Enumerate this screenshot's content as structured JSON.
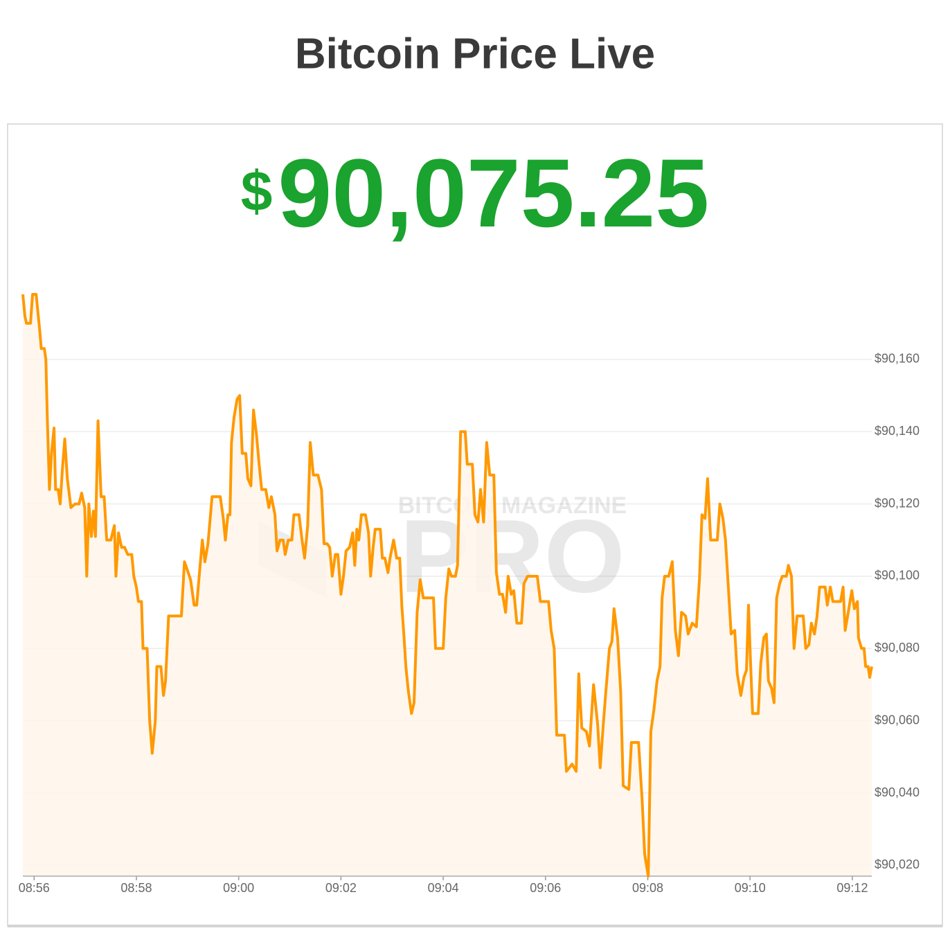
{
  "title": "Bitcoin Price Live",
  "price": {
    "currency": "$",
    "amount": "90,075.25"
  },
  "watermark": [
    "BITCOIN MAGAZINE",
    "PRO"
  ],
  "chart_data": {
    "type": "line",
    "xlim": [
      535.78,
      552.38
    ],
    "ylim": [
      90017,
      90178
    ],
    "xticks": [
      {
        "value": 536,
        "label": "08:56"
      },
      {
        "value": 538,
        "label": "08:58"
      },
      {
        "value": 540,
        "label": "09:00"
      },
      {
        "value": 542,
        "label": "09:02"
      },
      {
        "value": 544,
        "label": "09:04"
      },
      {
        "value": 546,
        "label": "09:06"
      },
      {
        "value": 548,
        "label": "09:08"
      },
      {
        "value": 550,
        "label": "09:10"
      },
      {
        "value": 552,
        "label": "09:12"
      }
    ],
    "yticks": [
      {
        "value": 90020,
        "label": "$90,020"
      },
      {
        "value": 90040,
        "label": "$90,040"
      },
      {
        "value": 90060,
        "label": "$90,060"
      },
      {
        "value": 90080,
        "label": "$90,080"
      },
      {
        "value": 90100,
        "label": "$90,100"
      },
      {
        "value": 90120,
        "label": "$90,120"
      },
      {
        "value": 90140,
        "label": "$90,140"
      },
      {
        "value": 90160,
        "label": "$90,160"
      }
    ],
    "grid": true,
    "area_color": "#fff6ea",
    "x": [
      535.78,
      535.82,
      535.85,
      535.93,
      535.97,
      536.04,
      536.11,
      536.14,
      536.2,
      536.23,
      536.26,
      536.3,
      536.34,
      536.39,
      536.42,
      536.47,
      536.51,
      536.55,
      536.6,
      536.65,
      536.72,
      536.8,
      536.88,
      536.93,
      536.99,
      537.03,
      537.07,
      537.12,
      537.16,
      537.2,
      537.25,
      537.31,
      537.37,
      537.42,
      537.5,
      537.57,
      537.6,
      537.65,
      537.71,
      537.77,
      537.83,
      537.91,
      537.95,
      538.0,
      538.04,
      538.1,
      538.13,
      538.21,
      538.26,
      538.31,
      538.37,
      538.4,
      538.48,
      538.53,
      538.57,
      538.63,
      538.88,
      538.94,
      538.99,
      539.06,
      539.13,
      539.18,
      539.24,
      539.29,
      539.34,
      539.4,
      539.48,
      539.64,
      539.7,
      539.74,
      539.79,
      539.83,
      539.86,
      539.91,
      539.97,
      540.02,
      540.07,
      540.14,
      540.18,
      540.24,
      540.29,
      540.35,
      540.4,
      540.45,
      540.53,
      540.59,
      540.64,
      540.71,
      540.75,
      540.81,
      540.87,
      540.91,
      540.97,
      541.04,
      541.08,
      541.18,
      541.24,
      541.29,
      541.35,
      541.4,
      541.46,
      541.55,
      541.62,
      541.67,
      541.73,
      541.78,
      541.83,
      541.89,
      541.94,
      542.0,
      542.05,
      542.1,
      542.17,
      542.23,
      542.27,
      542.31,
      542.35,
      542.4,
      542.48,
      542.54,
      542.58,
      542.63,
      542.67,
      542.77,
      542.81,
      542.86,
      542.92,
      542.96,
      543.03,
      543.09,
      543.15,
      543.19,
      543.23,
      543.27,
      543.32,
      543.38,
      543.43,
      543.49,
      543.55,
      543.61,
      543.81,
      543.85,
      544.0,
      544.05,
      544.11,
      544.16,
      544.24,
      544.28,
      544.34,
      544.43,
      544.47,
      544.57,
      544.62,
      544.68,
      544.73,
      544.79,
      544.85,
      544.91,
      544.99,
      545.04,
      545.1,
      545.16,
      545.22,
      545.27,
      545.33,
      545.38,
      545.44,
      545.53,
      545.58,
      545.65,
      545.84,
      545.9,
      546.06,
      546.11,
      546.17,
      546.22,
      546.37,
      546.41,
      546.52,
      546.6,
      546.65,
      546.71,
      546.8,
      546.86,
      546.94,
      547.02,
      547.07,
      547.13,
      547.18,
      547.25,
      547.3,
      547.34,
      547.41,
      547.47,
      547.52,
      547.63,
      547.68,
      547.82,
      547.89,
      547.94,
      548.01,
      548.06,
      548.12,
      548.18,
      548.24,
      548.28,
      548.33,
      548.41,
      548.48,
      548.54,
      548.6,
      548.66,
      548.74,
      548.79,
      548.87,
      548.95,
      549.01,
      549.06,
      549.12,
      549.17,
      549.23,
      549.36,
      549.41,
      549.47,
      549.52,
      549.58,
      549.63,
      549.7,
      549.75,
      549.82,
      549.88,
      549.93,
      549.97,
      550.01,
      550.05,
      550.16,
      550.21,
      550.27,
      550.32,
      550.36,
      550.42,
      550.47,
      550.52,
      550.58,
      550.63,
      550.71,
      550.75,
      550.81,
      550.86,
      550.92,
      551.04,
      551.09,
      551.15,
      551.2,
      551.26,
      551.31,
      551.36,
      551.47,
      551.51,
      551.57,
      551.62,
      551.77,
      551.82,
      551.86,
      551.92,
      551.99,
      552.04,
      552.1,
      552.12,
      552.18,
      552.23,
      552.26,
      552.31,
      552.34,
      552.38
    ],
    "series": [
      {
        "color": "#ff9900",
        "values": [
          90178,
          90172,
          90170,
          90170,
          90178,
          90178,
          90168,
          90163,
          90163,
          90160,
          90143,
          90124,
          90134,
          90141,
          90124,
          90124,
          90120,
          90129,
          90138,
          90127,
          90119,
          90120,
          90120,
          90123,
          90119,
          90100,
          90120,
          90111,
          90118,
          90111,
          90143,
          90122,
          90122,
          90110,
          90110,
          90114,
          90100,
          90112,
          90108,
          90108,
          90106,
          90106,
          90100,
          90097,
          90093,
          90093,
          90080,
          90080,
          90060,
          90051,
          90060,
          90075,
          90075,
          90067,
          90071,
          90089,
          90089,
          90104,
          90102,
          90099,
          90092,
          90092,
          90102,
          90110,
          90104,
          90109,
          90122,
          90122,
          90116,
          90110,
          90117,
          90117,
          90137,
          90144,
          90149,
          90150,
          90134,
          90134,
          90127,
          90125,
          90146,
          90139,
          90131,
          90124,
          90124,
          90119,
          90122,
          90117,
          90107,
          90110,
          90110,
          90106,
          90110,
          90110,
          90117,
          90117,
          90110,
          90105,
          90114,
          90137,
          90128,
          90128,
          90124,
          90109,
          90109,
          90108,
          90100,
          90106,
          90106,
          90095,
          90100,
          90107,
          90108,
          90112,
          90103,
          90113,
          90110,
          90117,
          90117,
          90112,
          90100,
          90108,
          90113,
          90113,
          90105,
          90105,
          90101,
          90105,
          90110,
          90105,
          90105,
          90092,
          90084,
          90075,
          90068,
          90062,
          90065,
          90090,
          90099,
          90094,
          90094,
          90080,
          90080,
          90094,
          90102,
          90100,
          90100,
          90103,
          90140,
          90140,
          90131,
          90131,
          90117,
          90115,
          90124,
          90115,
          90137,
          90128,
          90128,
          90101,
          90095,
          90095,
          90090,
          90100,
          90095,
          90096,
          90087,
          90087,
          90098,
          90100,
          90100,
          90093,
          90093,
          90085,
          90080,
          90056,
          90056,
          90046,
          90048,
          90046,
          90073,
          90058,
          90057,
          90053,
          90070,
          90059,
          90047,
          90059,
          90068,
          90080,
          90082,
          90091,
          90083,
          90068,
          90042,
          90041,
          90054,
          90054,
          90038,
          90023,
          90017,
          90057,
          90063,
          90071,
          90075,
          90094,
          90100,
          90100,
          90104,
          90085,
          90078,
          90090,
          90089,
          90084,
          90087,
          90086,
          90099,
          90117,
          90116,
          90127,
          90110,
          90110,
          90120,
          90116,
          90110,
          90096,
          90084,
          90085,
          90073,
          90067,
          90072,
          90074,
          90092,
          90076,
          90062,
          90062,
          90076,
          90083,
          90084,
          90071,
          90069,
          90065,
          90094,
          90098,
          90100,
          90100,
          90103,
          90100,
          90080,
          90089,
          90089,
          90080,
          90081,
          90087,
          90084,
          90089,
          90097,
          90097,
          90092,
          90097,
          90093,
          90093,
          90097,
          90085,
          90090,
          90096,
          90091,
          90093,
          90083,
          90080,
          90080,
          90075,
          90075,
          90072,
          90075
        ]
      }
    ]
  }
}
